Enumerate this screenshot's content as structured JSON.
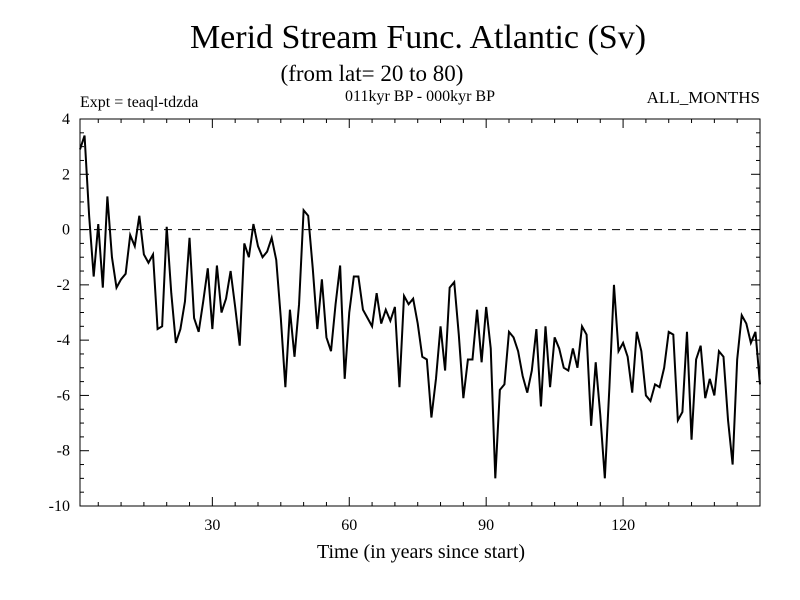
{
  "chart_data": {
    "type": "line",
    "title": "Merid Stream Func. Atlantic (Sv)",
    "subtitle": "(from lat= 20 to 80)",
    "experiment_label": "Expt = teaql-tdzda",
    "period_label": "011kyr BP - 000kyr BP",
    "months_label": "ALL_MONTHS",
    "xlabel": "Time (in years since start)",
    "ylabel": "",
    "xlim": [
      1,
      150
    ],
    "ylim": [
      -10,
      4
    ],
    "xticks": [
      30,
      60,
      90,
      120
    ],
    "yticks": [
      4,
      2,
      0,
      -2,
      -4,
      -6,
      -8,
      -10
    ],
    "reference_line": {
      "y": 0,
      "style": "dashed"
    },
    "series": [
      {
        "name": "Merid Stream Func. Atlantic",
        "x": [
          1,
          2,
          3,
          4,
          5,
          6,
          7,
          8,
          9,
          10,
          11,
          12,
          13,
          14,
          15,
          16,
          17,
          18,
          19,
          20,
          21,
          22,
          23,
          24,
          25,
          26,
          27,
          28,
          29,
          30,
          31,
          32,
          33,
          34,
          35,
          36,
          37,
          38,
          39,
          40,
          41,
          42,
          43,
          44,
          45,
          46,
          47,
          48,
          49,
          50,
          51,
          52,
          53,
          54,
          55,
          56,
          57,
          58,
          59,
          60,
          61,
          62,
          63,
          64,
          65,
          66,
          67,
          68,
          69,
          70,
          71,
          72,
          73,
          74,
          75,
          76,
          77,
          78,
          79,
          80,
          81,
          82,
          83,
          84,
          85,
          86,
          87,
          88,
          89,
          90,
          91,
          92,
          93,
          94,
          95,
          96,
          97,
          98,
          99,
          100,
          101,
          102,
          103,
          104,
          105,
          106,
          107,
          108,
          109,
          110,
          111,
          112,
          113,
          114,
          115,
          116,
          117,
          118,
          119,
          120,
          121,
          122,
          123,
          124,
          125,
          126,
          127,
          128,
          129,
          130,
          131,
          132,
          133,
          134,
          135,
          136,
          137,
          138,
          139,
          140,
          141,
          142,
          143,
          144,
          145,
          146,
          147,
          148,
          149,
          150
        ],
        "values": [
          2.9,
          3.4,
          0.5,
          -1.7,
          0.2,
          -2.1,
          1.2,
          -1.0,
          -2.1,
          -1.8,
          -1.6,
          -0.2,
          -0.6,
          0.5,
          -0.9,
          -1.2,
          -0.9,
          -3.6,
          -3.5,
          0.1,
          -2.3,
          -4.1,
          -3.6,
          -2.6,
          -0.3,
          -3.2,
          -3.7,
          -2.6,
          -1.4,
          -3.6,
          -1.3,
          -3.0,
          -2.5,
          -1.5,
          -2.8,
          -4.2,
          -0.5,
          -1.0,
          0.2,
          -0.6,
          -1.0,
          -0.8,
          -0.3,
          -1.1,
          -3.2,
          -5.7,
          -2.9,
          -4.6,
          -2.7,
          0.7,
          0.5,
          -1.4,
          -3.6,
          -1.8,
          -3.9,
          -4.4,
          -2.7,
          -1.3,
          -5.4,
          -3.0,
          -1.7,
          -1.7,
          -2.9,
          -3.2,
          -3.5,
          -2.3,
          -3.4,
          -2.9,
          -3.3,
          -2.8,
          -5.7,
          -2.4,
          -2.7,
          -2.5,
          -3.4,
          -4.6,
          -4.7,
          -6.8,
          -5.4,
          -3.5,
          -5.1,
          -2.1,
          -1.9,
          -3.8,
          -6.1,
          -4.7,
          -4.7,
          -2.9,
          -4.8,
          -2.8,
          -4.3,
          -9.0,
          -5.8,
          -5.6,
          -3.7,
          -3.9,
          -4.4,
          -5.3,
          -5.9,
          -5.1,
          -3.6,
          -6.4,
          -3.5,
          -5.7,
          -3.9,
          -4.3,
          -5.0,
          -5.1,
          -4.3,
          -5.0,
          -3.5,
          -3.8,
          -7.1,
          -4.8,
          -6.7,
          -9.0,
          -5.7,
          -2.0,
          -4.4,
          -4.1,
          -4.6,
          -5.9,
          -3.7,
          -4.4,
          -6.0,
          -6.2,
          -5.6,
          -5.7,
          -5.0,
          -3.7,
          -3.8,
          -6.9,
          -6.6,
          -3.7,
          -7.6,
          -4.7,
          -4.2,
          -6.1,
          -5.4,
          -6.0,
          -4.4,
          -4.6,
          -6.9,
          -8.5,
          -4.7,
          -3.1,
          -3.4,
          -4.1,
          -3.7,
          -5.6
        ]
      }
    ]
  }
}
